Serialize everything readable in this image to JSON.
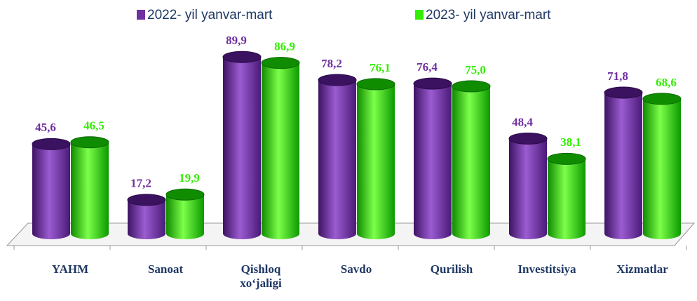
{
  "chart_data": {
    "type": "bar",
    "categories": [
      "YAHM",
      "Sanoat",
      "Qishloq xo‘jaligi",
      "Savdo",
      "Qurilish",
      "Investitsiya",
      "Xizmatlar"
    ],
    "series": [
      {
        "name": "2022- yil yanvar-mart",
        "color": "#7030a0",
        "values": [
          45.6,
          17.2,
          89.9,
          78.2,
          76.4,
          48.4,
          71.8
        ],
        "value_labels": [
          "45,6",
          "17,2",
          "89,9",
          "78,2",
          "76,4",
          "48,4",
          "71,8"
        ]
      },
      {
        "name": "2023- yil yanvar-mart",
        "color": "#33ee00",
        "values": [
          46.5,
          19.9,
          86.9,
          76.1,
          75.0,
          38.1,
          68.6
        ],
        "value_labels": [
          "46,5",
          "19,9",
          "86,9",
          "76,1",
          "75,0",
          "38,1",
          "68,6"
        ]
      }
    ]
  }
}
